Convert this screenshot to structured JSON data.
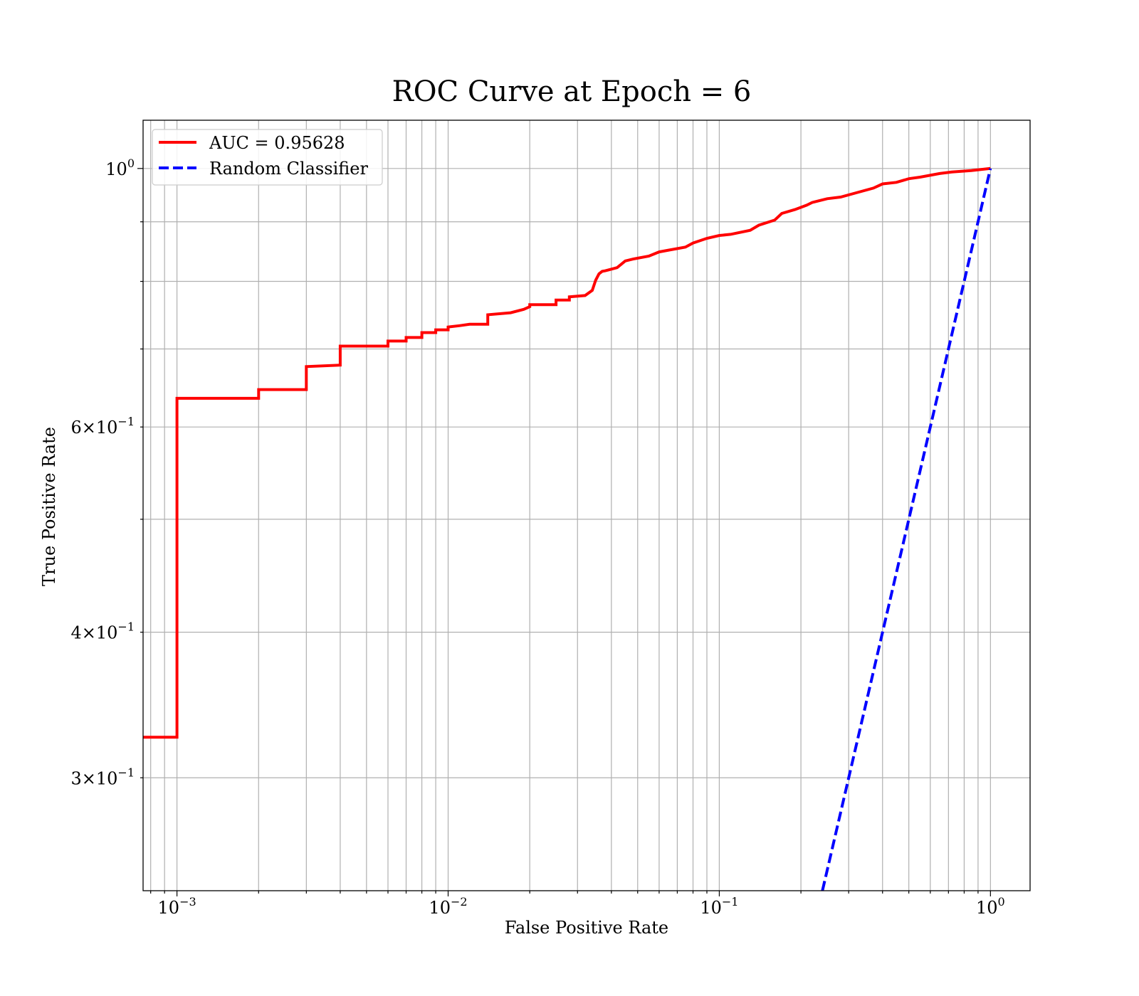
{
  "chart_data": {
    "type": "line",
    "title": "ROC Curve at Epoch = 6",
    "xlabel": "False Positive Rate",
    "ylabel": "True Positive Rate",
    "xscale": "log",
    "yscale": "log",
    "xlim": [
      0.00075,
      1.4
    ],
    "ylim": [
      0.24,
      1.1
    ],
    "grid": "both-major-and-minor",
    "legend_position": "top-left",
    "x_ticks": [
      {
        "base": "10",
        "exp": "−3"
      },
      {
        "base": "10",
        "exp": "−2"
      },
      {
        "base": "10",
        "exp": "−1"
      },
      {
        "base": "10",
        "exp": "0"
      }
    ],
    "y_ticks": [
      {
        "mant": "3",
        "base": "10",
        "exp": "−1",
        "value": 0.3
      },
      {
        "mant": "4",
        "base": "10",
        "exp": "−1",
        "value": 0.4
      },
      {
        "mant": "6",
        "base": "10",
        "exp": "−1",
        "value": 0.6
      },
      {
        "mant": "",
        "base": "10",
        "exp": "0",
        "value": 1.0
      }
    ],
    "series": [
      {
        "name": "AUC = 0.95628",
        "color": "#ff0000",
        "style": "solid",
        "drawstyle": "steps",
        "x": [
          0.00075,
          0.001,
          0.001,
          0.002,
          0.002,
          0.003,
          0.003,
          0.004,
          0.004,
          0.006,
          0.006,
          0.007,
          0.007,
          0.008,
          0.008,
          0.009,
          0.009,
          0.01,
          0.01,
          0.011,
          0.012,
          0.014,
          0.014,
          0.017,
          0.019,
          0.02,
          0.02,
          0.025,
          0.025,
          0.028,
          0.028,
          0.032,
          0.034,
          0.035,
          0.036,
          0.037,
          0.038,
          0.042,
          0.045,
          0.048,
          0.055,
          0.06,
          0.065,
          0.075,
          0.08,
          0.09,
          0.1,
          0.11,
          0.13,
          0.14,
          0.16,
          0.17,
          0.19,
          0.21,
          0.22,
          0.25,
          0.28,
          0.32,
          0.37,
          0.4,
          0.45,
          0.5,
          0.55,
          0.65,
          0.72,
          0.85,
          1.0
        ],
        "y": [
          0.325,
          0.325,
          0.635,
          0.635,
          0.646,
          0.646,
          0.676,
          0.678,
          0.704,
          0.704,
          0.711,
          0.711,
          0.716,
          0.716,
          0.723,
          0.723,
          0.727,
          0.727,
          0.731,
          0.733,
          0.735,
          0.735,
          0.749,
          0.752,
          0.757,
          0.761,
          0.764,
          0.764,
          0.771,
          0.771,
          0.776,
          0.778,
          0.786,
          0.802,
          0.812,
          0.816,
          0.817,
          0.822,
          0.833,
          0.836,
          0.841,
          0.848,
          0.851,
          0.856,
          0.863,
          0.871,
          0.876,
          0.878,
          0.885,
          0.894,
          0.903,
          0.915,
          0.922,
          0.93,
          0.935,
          0.942,
          0.945,
          0.953,
          0.962,
          0.97,
          0.973,
          0.98,
          0.983,
          0.99,
          0.993,
          0.996,
          1.0
        ]
      },
      {
        "name": "Random Classifier",
        "color": "#0000ff",
        "style": "dashed",
        "drawstyle": "line",
        "x": [
          0.24,
          1.0
        ],
        "y": [
          0.24,
          1.0
        ]
      }
    ]
  }
}
